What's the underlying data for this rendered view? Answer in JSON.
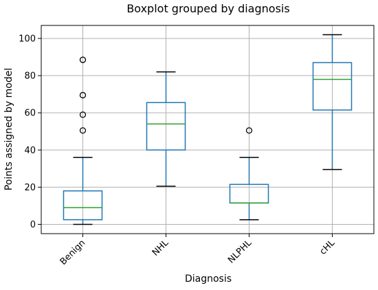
{
  "chart_data": {
    "type": "boxplot",
    "title": "Boxplot grouped by diagnosis",
    "xlabel": "Diagnosis",
    "ylabel": "Points assigned by model",
    "categories": [
      "Benign",
      "NHL",
      "NLPHL",
      "cHL"
    ],
    "ylim": [
      -5,
      107
    ],
    "yticks": [
      0,
      20,
      40,
      60,
      80,
      100
    ],
    "grid": true,
    "colors": {
      "box": "#1f77b4",
      "median": "#2ca02c",
      "whisker": "#1f77b4",
      "cap": "#000000",
      "flier": "#000000"
    },
    "boxes": [
      {
        "name": "Benign",
        "whislo": 0,
        "q1": 2.5,
        "med": 9,
        "q3": 18,
        "whishi": 36,
        "fliers": [
          50.5,
          59,
          69.5,
          88.5
        ]
      },
      {
        "name": "NHL",
        "whislo": 20.5,
        "q1": 40,
        "med": 54,
        "q3": 65.5,
        "whishi": 82,
        "fliers": []
      },
      {
        "name": "NLPHL",
        "whislo": 2.5,
        "q1": 11.5,
        "med": 11.5,
        "q3": 21.5,
        "whishi": 36,
        "fliers": [
          50.5
        ]
      },
      {
        "name": "cHL",
        "whislo": 29.5,
        "q1": 61.5,
        "med": 78,
        "q3": 87,
        "whishi": 102,
        "fliers": []
      }
    ]
  }
}
